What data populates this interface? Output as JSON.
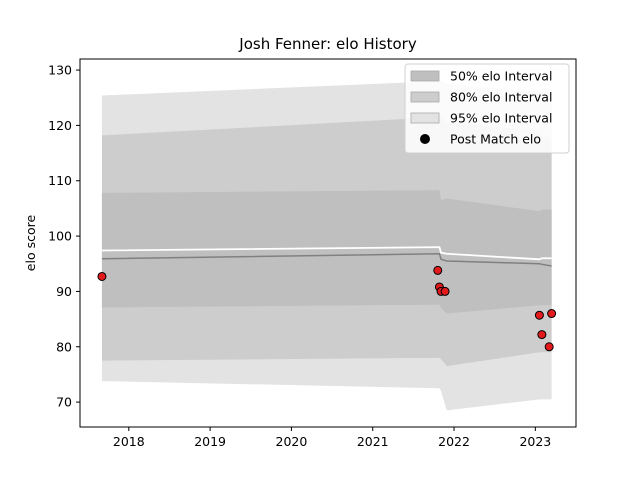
{
  "chart_data": {
    "type": "area",
    "title": "Josh Fenner: elo History",
    "xlabel": "",
    "ylabel": "elo score",
    "xlim": [
      2017.4,
      2023.5
    ],
    "ylim": [
      65.5,
      132
    ],
    "x_ticks": [
      2018,
      2019,
      2020,
      2021,
      2022,
      2023
    ],
    "x_tick_labels": [
      "2018",
      "2019",
      "2020",
      "2021",
      "2022",
      "2023"
    ],
    "y_ticks": [
      70,
      80,
      90,
      100,
      110,
      120,
      130
    ],
    "y_tick_labels": [
      "70",
      "80",
      "90",
      "100",
      "110",
      "120",
      "130"
    ],
    "legend": {
      "position": "top-right",
      "entries": [
        {
          "label": "50% elo Interval",
          "kind": "band",
          "key": "b50"
        },
        {
          "label": "80% elo Interval",
          "kind": "band",
          "key": "b80"
        },
        {
          "label": "95% elo Interval",
          "kind": "band",
          "key": "b95"
        },
        {
          "label": "Post Match elo",
          "kind": "marker"
        }
      ]
    },
    "bands": {
      "b95": {
        "x": [
          2017.67,
          2021.82,
          2021.84,
          2021.91,
          2023.05,
          2023.08,
          2023.2
        ],
        "lower": [
          73.8,
          72.5,
          72.0,
          68.5,
          70.5,
          70.5,
          70.5
        ],
        "upper": [
          125.4,
          128.0,
          128.0,
          127.5,
          126.0,
          126.0,
          126.0
        ]
      },
      "b80": {
        "x": [
          2017.67,
          2021.82,
          2021.84,
          2021.91,
          2023.05,
          2023.08,
          2023.2
        ],
        "lower": [
          77.5,
          78.0,
          77.8,
          76.5,
          79.0,
          79.0,
          79.0
        ],
        "upper": [
          118.2,
          121.5,
          121.5,
          120.5,
          119.0,
          118.0,
          118.0
        ]
      },
      "b50": {
        "x": [
          2017.67,
          2021.82,
          2021.84,
          2021.91,
          2023.05,
          2023.08,
          2023.2
        ],
        "lower": [
          87.1,
          87.6,
          87.0,
          86.0,
          87.5,
          87.5,
          87.5
        ],
        "upper": [
          107.8,
          108.3,
          106.5,
          106.8,
          104.5,
          104.8,
          104.8
        ]
      }
    },
    "lines": {
      "mean": {
        "x": [
          2017.67,
          2021.82,
          2021.84,
          2021.91,
          2023.05,
          2023.08,
          2023.2
        ],
        "y": [
          97.4,
          98.0,
          97.0,
          96.8,
          95.8,
          96.0,
          96.0
        ]
      },
      "median": {
        "x": [
          2017.67,
          2021.82,
          2021.84,
          2021.91,
          2023.05,
          2023.08,
          2023.2
        ],
        "y": [
          95.9,
          96.8,
          95.8,
          95.5,
          95.0,
          94.9,
          94.6
        ]
      }
    },
    "points": {
      "x": [
        2017.67,
        2021.8,
        2021.82,
        2021.84,
        2021.89,
        2023.05,
        2023.08,
        2023.17,
        2023.2
      ],
      "y": [
        92.7,
        93.8,
        90.8,
        90.0,
        90.0,
        85.7,
        82.2,
        80.0,
        86.0
      ]
    },
    "colors": {
      "b95": "#e3e3e3",
      "b80": "#cdcdcd",
      "b50": "#bfbfbf",
      "mean": "#ffffff",
      "median": "#808080",
      "point_fill": "#e31a1c",
      "point_edge": "#000000"
    },
    "grid": false
  }
}
